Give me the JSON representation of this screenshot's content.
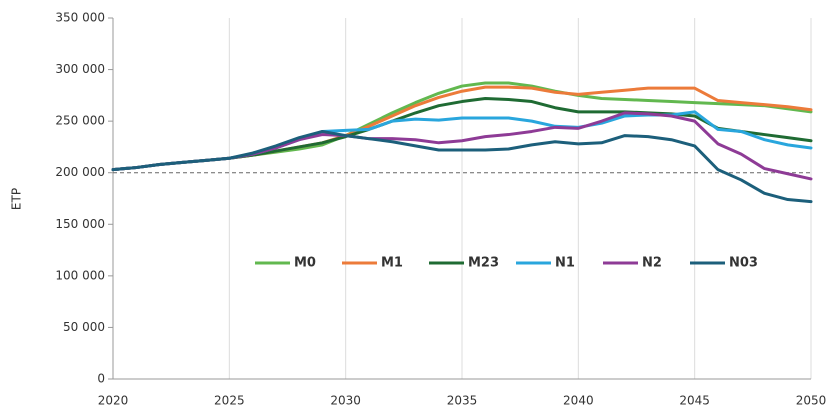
{
  "chart_data": {
    "type": "line",
    "y_label": "ETP",
    "x": [
      2020,
      2021,
      2022,
      2023,
      2024,
      2025,
      2026,
      2027,
      2028,
      2029,
      2030,
      2031,
      2032,
      2033,
      2034,
      2035,
      2036,
      2037,
      2038,
      2039,
      2040,
      2041,
      2042,
      2043,
      2044,
      2045,
      2046,
      2047,
      2048,
      2049,
      2050
    ],
    "series": [
      {
        "name": "M0",
        "color": "#62b84f",
        "values": [
          203000,
          205000,
          208000,
          210000,
          212000,
          214000,
          217000,
          220000,
          223000,
          227000,
          236000,
          247000,
          258000,
          268000,
          277000,
          284000,
          287000,
          287000,
          284000,
          279000,
          275000,
          272000,
          271000,
          270000,
          269000,
          268000,
          267000,
          266000,
          265000,
          262000,
          259000
        ]
      },
      {
        "name": "M1",
        "color": "#ec7b3a",
        "values": [
          203000,
          205000,
          208000,
          210000,
          212000,
          214000,
          217000,
          221000,
          225000,
          229000,
          236000,
          245000,
          255000,
          265000,
          273000,
          279000,
          283000,
          283000,
          282000,
          278000,
          276000,
          278000,
          280000,
          282000,
          282000,
          282000,
          270000,
          268000,
          266000,
          264000,
          261000
        ]
      },
      {
        "name": "M23",
        "color": "#1f6b33",
        "values": [
          203000,
          205000,
          208000,
          210000,
          212000,
          214000,
          217000,
          221000,
          225000,
          229000,
          235000,
          242000,
          250000,
          258000,
          265000,
          269000,
          272000,
          271000,
          269000,
          263000,
          259000,
          259000,
          259000,
          258000,
          257000,
          255000,
          243000,
          240000,
          237000,
          234000,
          231000
        ]
      },
      {
        "name": "N1",
        "color": "#29a6dd",
        "values": [
          203000,
          205000,
          208000,
          210000,
          212000,
          214000,
          218000,
          224000,
          232000,
          240000,
          241000,
          242000,
          250000,
          252000,
          251000,
          253000,
          253000,
          253000,
          250000,
          245000,
          244000,
          248000,
          255000,
          256000,
          256000,
          259000,
          242000,
          240000,
          232000,
          227000,
          224000
        ]
      },
      {
        "name": "N2",
        "color": "#8e3b96",
        "values": [
          203000,
          205000,
          208000,
          210000,
          212000,
          214000,
          218000,
          224000,
          232000,
          237000,
          236000,
          233000,
          233000,
          232000,
          229000,
          231000,
          235000,
          237000,
          240000,
          244000,
          243000,
          250000,
          258000,
          257000,
          255000,
          250000,
          228000,
          218000,
          204000,
          199000,
          194000
        ]
      },
      {
        "name": "N03",
        "color": "#1c5f7b",
        "values": [
          203000,
          205000,
          208000,
          210000,
          212000,
          214000,
          219000,
          226000,
          234000,
          240000,
          236000,
          233000,
          230000,
          226000,
          222000,
          222000,
          222000,
          223000,
          227000,
          230000,
          228000,
          229000,
          236000,
          235000,
          232000,
          226000,
          203000,
          193000,
          180000,
          174000,
          172000
        ]
      }
    ],
    "xlim": [
      2020,
      2050
    ],
    "xticks": [
      2020,
      2025,
      2030,
      2035,
      2040,
      2045,
      2050
    ],
    "ylim": [
      0,
      350000
    ],
    "yticks": [
      0,
      {
        "value": 50000,
        "label": "50 000"
      },
      {
        "value": 100000,
        "label": "100 000"
      },
      {
        "value": 150000,
        "label": "150 000"
      },
      {
        "value": 200000,
        "label": "200 000"
      },
      {
        "value": 250000,
        "label": "250 000"
      },
      {
        "value": 300000,
        "label": "300 000"
      },
      {
        "value": 350000,
        "label": "350 000"
      }
    ],
    "reference_line": 200000,
    "grid": true
  }
}
